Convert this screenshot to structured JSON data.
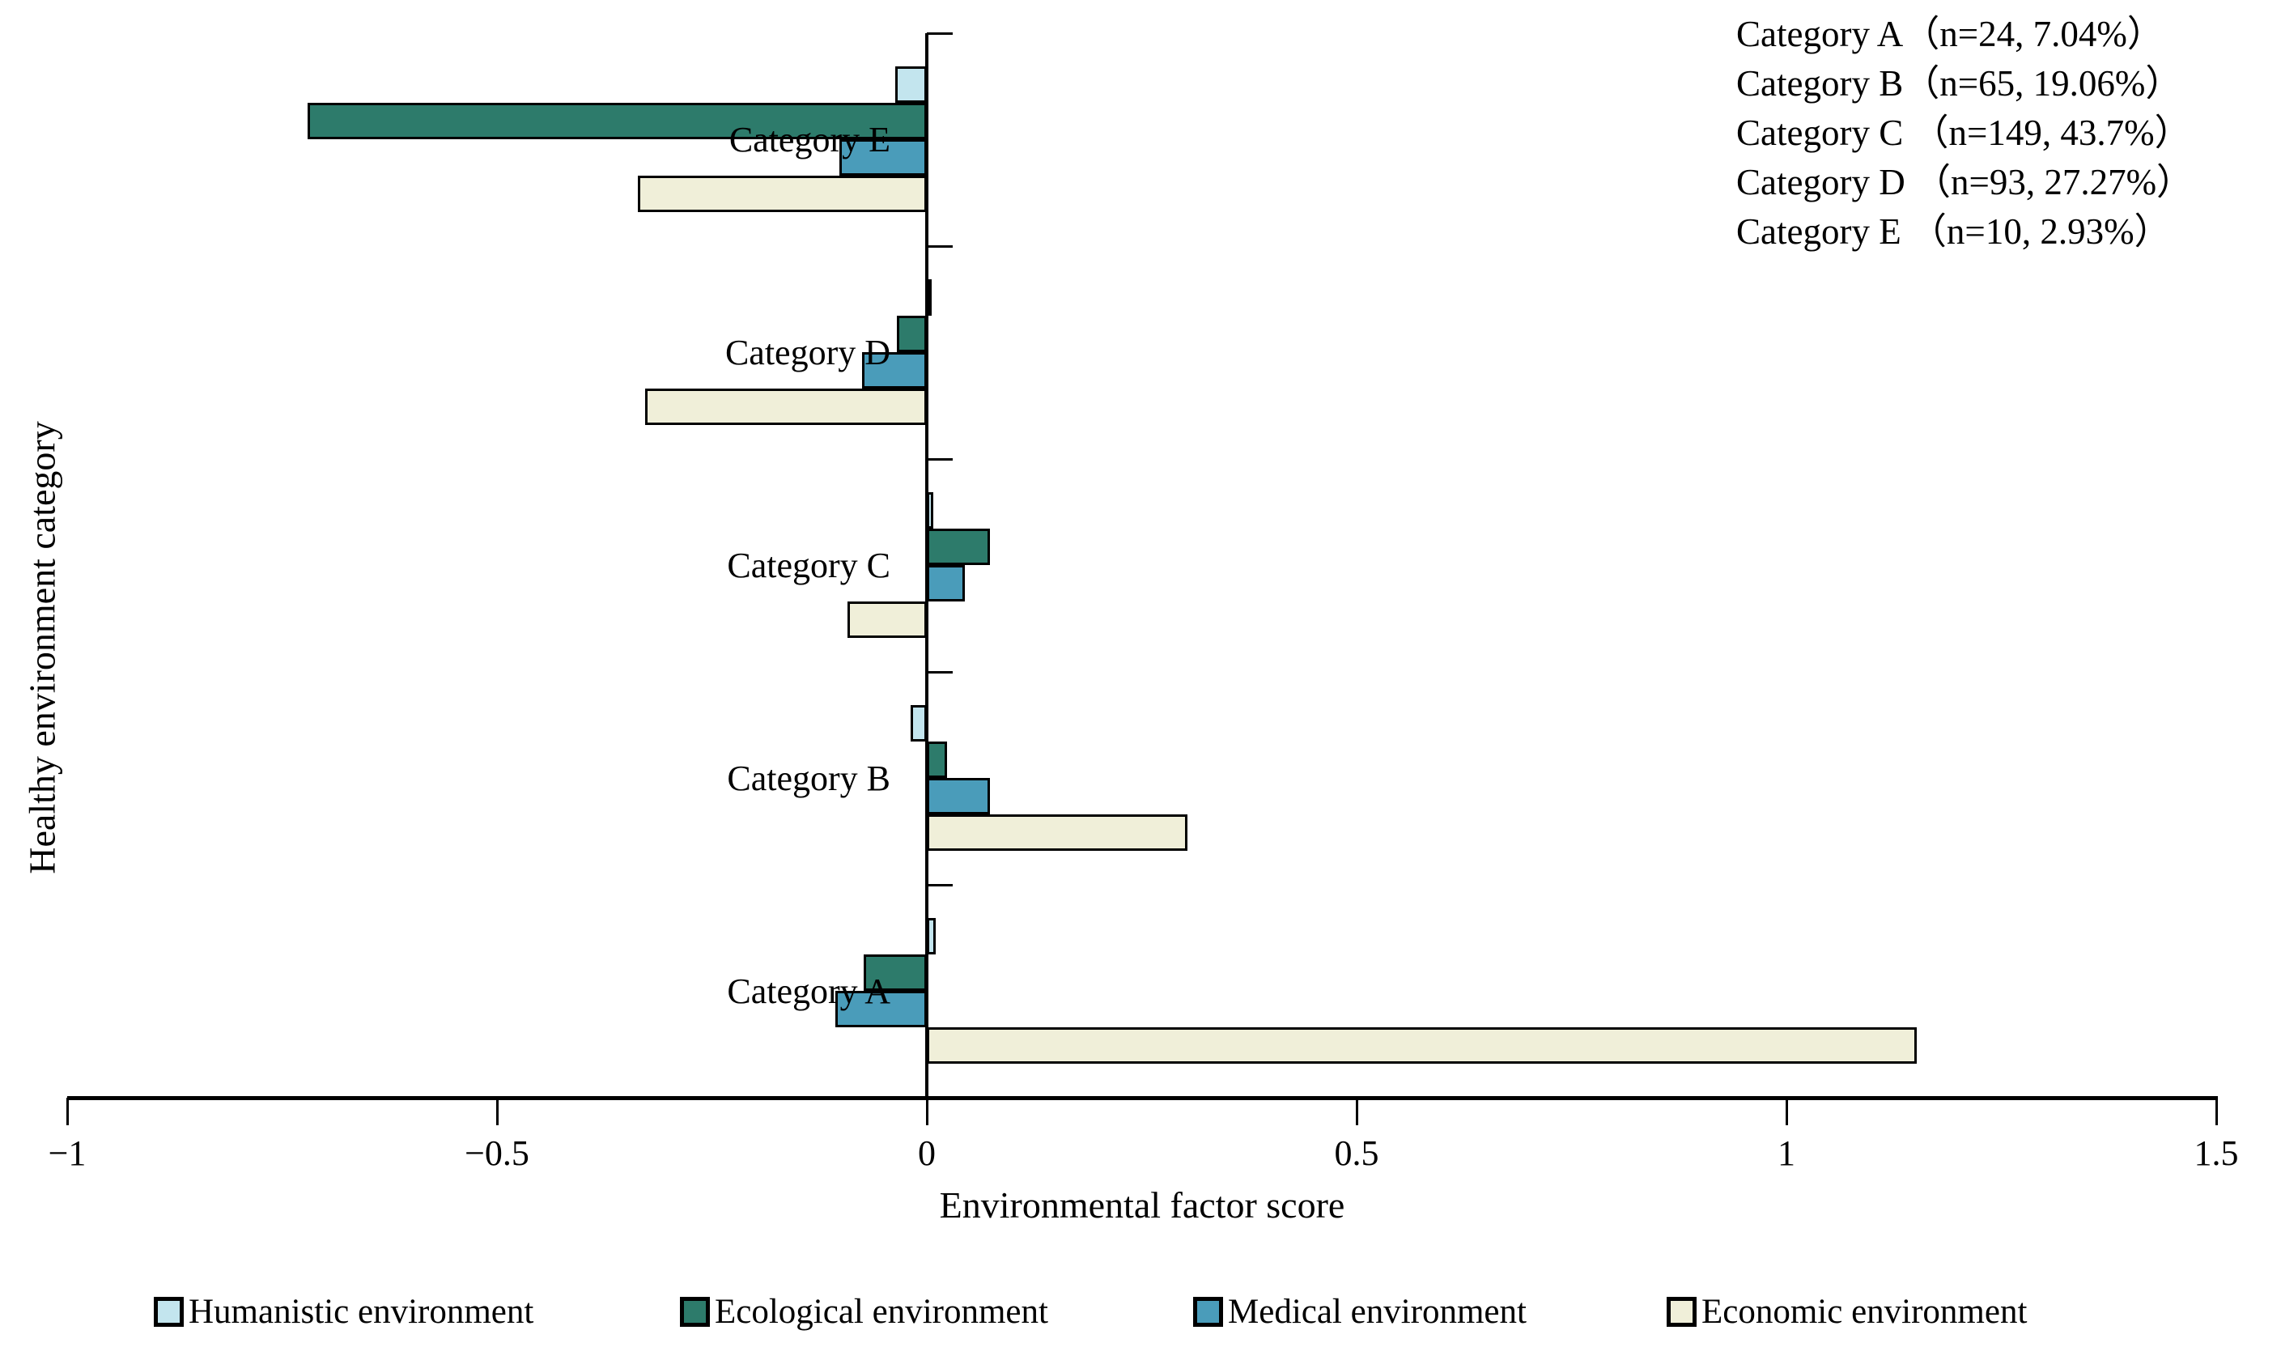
{
  "chart_data": {
    "type": "bar",
    "orientation": "horizontal",
    "xlabel": "Environmental factor score",
    "ylabel": "Healthy environment category",
    "xlim": [
      -1,
      1.5
    ],
    "xticks": [
      -1,
      -0.5,
      0,
      0.5,
      1,
      1.5
    ],
    "xtick_labels": [
      "−1",
      "−0.5",
      "0",
      "0.5",
      "1",
      "1.5"
    ],
    "categories": [
      "Category A",
      "Category B",
      "Category C",
      "Category D",
      "Category E"
    ],
    "category_display_order_top_to_bottom": [
      "Category E",
      "Category D",
      "Category C",
      "Category B",
      "Category A"
    ],
    "series": [
      {
        "name": "Humanistic environment",
        "color": "#c3e5ee",
        "values": {
          "Category A": 0.01,
          "Category B": -0.019,
          "Category C": 0.008,
          "Category D": 0.002,
          "Category E": -0.037
        }
      },
      {
        "name": "Ecological environment",
        "color": "#2d7b6b",
        "values": {
          "Category A": -0.073,
          "Category B": 0.024,
          "Category C": 0.073,
          "Category D": -0.035,
          "Category E": -0.72
        }
      },
      {
        "name": "Medical environment",
        "color": "#4a9cba",
        "values": {
          "Category A": -0.106,
          "Category B": 0.073,
          "Category C": 0.044,
          "Category D": -0.075,
          "Category E": -0.102
        }
      },
      {
        "name": "Economic environment",
        "color": "#f0efd9",
        "values": {
          "Category A": 1.152,
          "Category B": 0.303,
          "Category C": -0.092,
          "Category D": -0.328,
          "Category E": -0.336
        }
      }
    ],
    "annotations": [
      "Category A（n=24, 7.04%）",
      "Category B（n=65, 19.06%）",
      "Category C （n=149, 43.7%）",
      "Category D （n=93, 27.27%）",
      "Category E （n=10, 2.93%）"
    ],
    "legend_position": "bottom",
    "grid": false,
    "bar_border_color": "#000000",
    "axis_color": "#000000"
  }
}
